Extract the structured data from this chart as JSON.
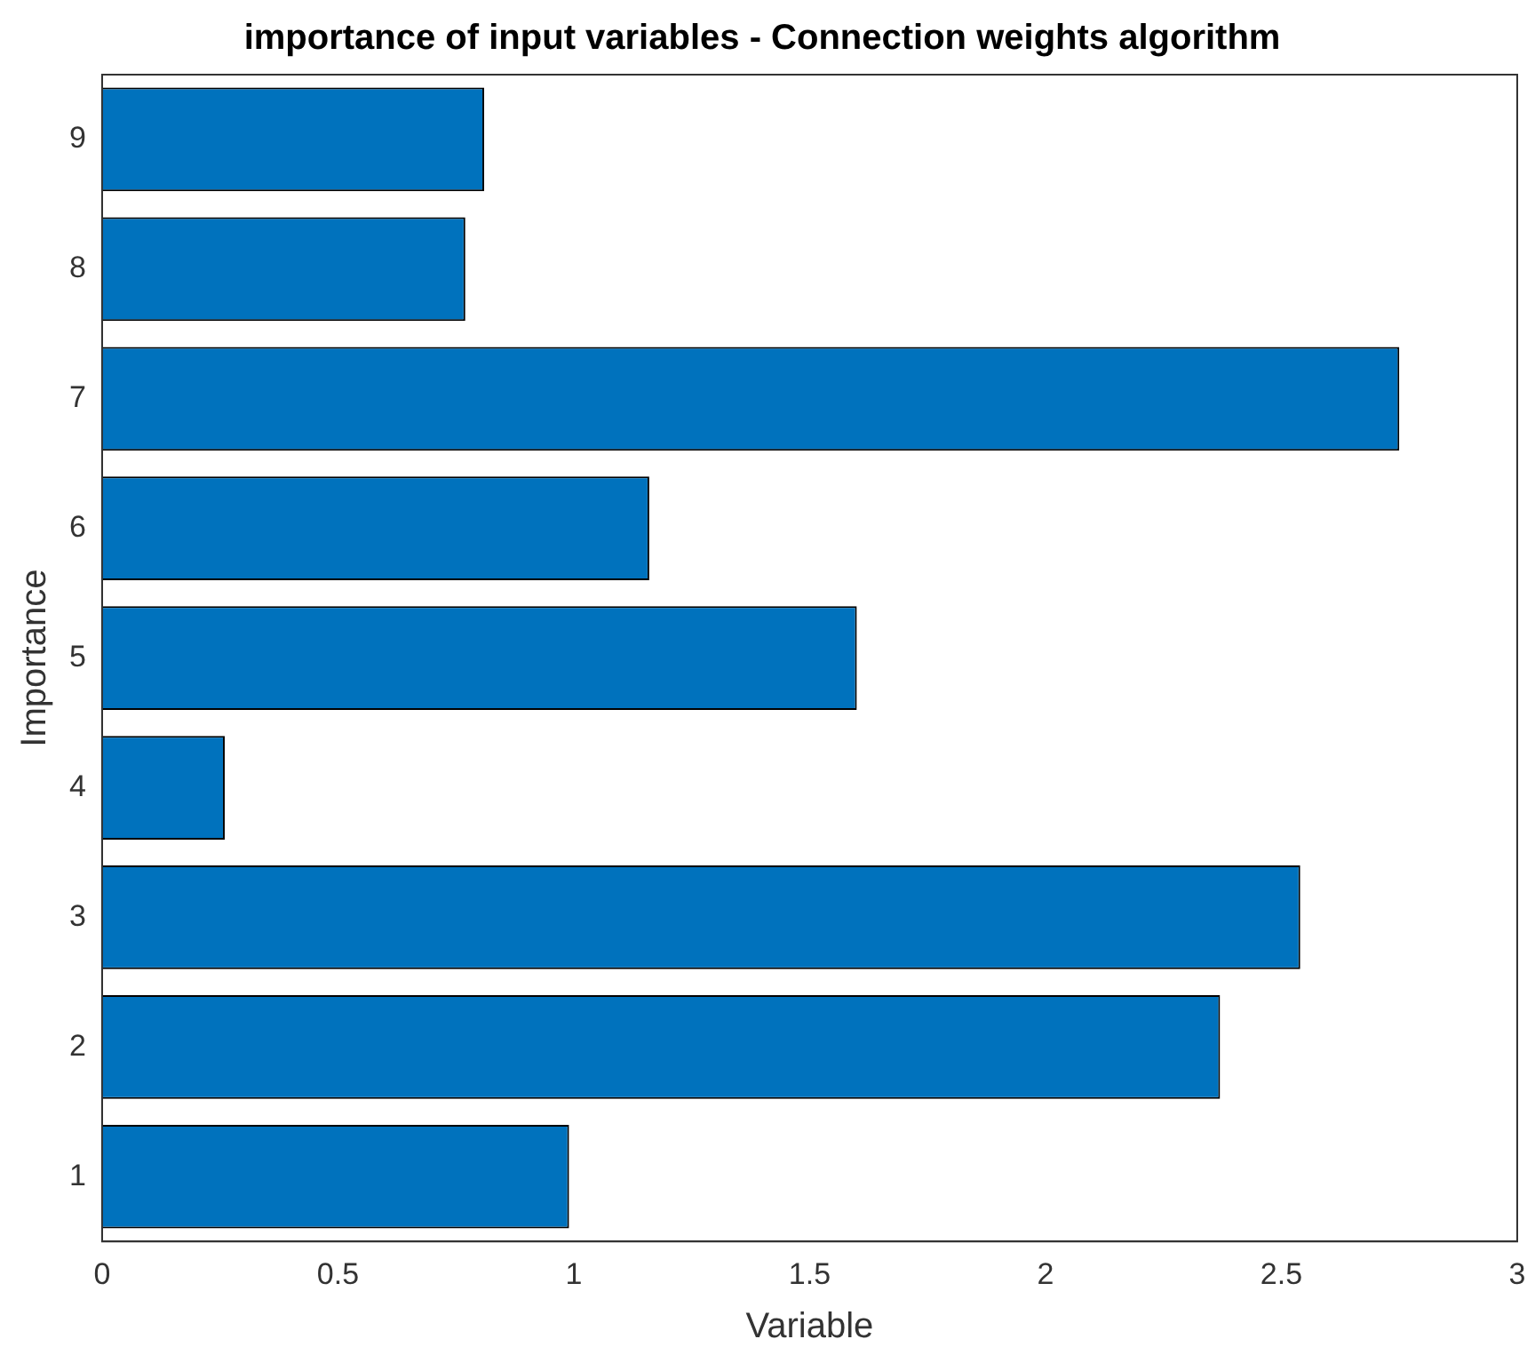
{
  "chart_data": {
    "type": "bar",
    "orientation": "horizontal",
    "title": "importance of input variables - Connection weights algorithm",
    "xlabel": "Variable",
    "ylabel": "Importance",
    "categories": [
      "9",
      "8",
      "7",
      "6",
      "5",
      "4",
      "3",
      "2",
      "1"
    ],
    "values": [
      0.81,
      0.77,
      2.75,
      1.16,
      1.6,
      0.26,
      2.54,
      2.37,
      0.99
    ],
    "color": "#0072bd",
    "xlim": [
      0,
      3
    ],
    "xticks": [
      0,
      0.5,
      1,
      1.5,
      2,
      2.5,
      3
    ],
    "grid": false,
    "legend": false
  }
}
